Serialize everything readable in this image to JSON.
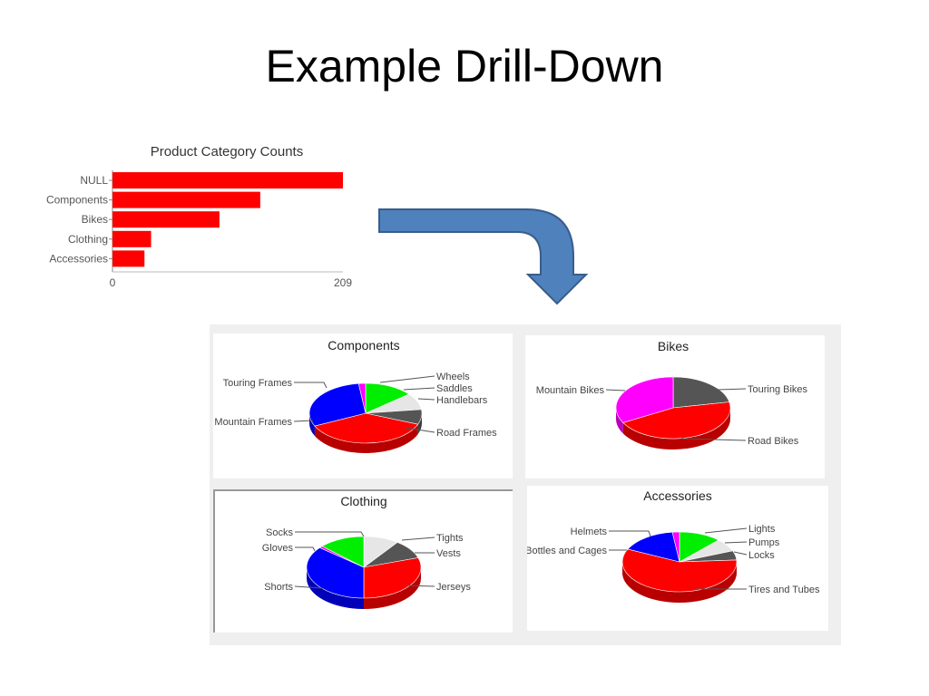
{
  "slide": {
    "title": "Example Drill-Down"
  },
  "colors": {
    "bar": "#ff0000",
    "arrow_fill": "#4f81bd",
    "arrow_stroke": "#385d8a"
  },
  "chart_data": [
    {
      "type": "bar",
      "orientation": "horizontal",
      "title": "Product Category Counts",
      "categories": [
        "NULL",
        "Components",
        "Bikes",
        "Clothing",
        "Accessories"
      ],
      "values": [
        209,
        134,
        97,
        35,
        29
      ],
      "xlim": [
        0,
        209
      ],
      "xticks": [
        "0",
        "209"
      ],
      "grid": false,
      "legend": "none"
    },
    {
      "type": "pie",
      "title": "Components",
      "slices": [
        {
          "label": "Wheels",
          "value": 14,
          "color": "#00ee00"
        },
        {
          "label": "Saddles",
          "value": 9,
          "color": "#e6e6e6"
        },
        {
          "label": "Handlebars",
          "value": 8,
          "color": "#555555"
        },
        {
          "label": "Road Frames",
          "value": 37,
          "color": "#ff0000"
        },
        {
          "label": "Mountain Frames",
          "value": 30,
          "color": "#0000ff"
        },
        {
          "label": "Touring Frames",
          "value": 2,
          "color": "#ff00ff"
        }
      ]
    },
    {
      "type": "pie",
      "title": "Bikes",
      "slices": [
        {
          "label": "Touring Bikes",
          "value": 22,
          "color": "#555555"
        },
        {
          "label": "Road Bikes",
          "value": 45,
          "color": "#ff0000"
        },
        {
          "label": "Mountain Bikes",
          "value": 33,
          "color": "#ff00ff"
        }
      ]
    },
    {
      "type": "pie",
      "title": "Clothing",
      "slices": [
        {
          "label": "Tights",
          "value": 10,
          "color": "#e6e6e6"
        },
        {
          "label": "Vests",
          "value": 10,
          "color": "#555555"
        },
        {
          "label": "Jerseys",
          "value": 30,
          "color": "#ff0000"
        },
        {
          "label": "Shorts",
          "value": 36,
          "color": "#0000ff"
        },
        {
          "label": "Gloves",
          "value": 1,
          "color": "#ff00ff"
        },
        {
          "label": "Socks",
          "value": 13,
          "color": "#00ee00"
        }
      ]
    },
    {
      "type": "pie",
      "title": "Accessories",
      "slices": [
        {
          "label": "Lights",
          "value": 12,
          "color": "#00ee00"
        },
        {
          "label": "Pumps",
          "value": 7,
          "color": "#e6e6e6"
        },
        {
          "label": "Locks",
          "value": 5,
          "color": "#555555"
        },
        {
          "label": "Tires and Tubes",
          "value": 58,
          "color": "#ff0000"
        },
        {
          "label": "Bottles and Cages",
          "value": 16,
          "color": "#0000ff"
        },
        {
          "label": "Helmets",
          "value": 2,
          "color": "#ff00ff"
        }
      ]
    }
  ]
}
